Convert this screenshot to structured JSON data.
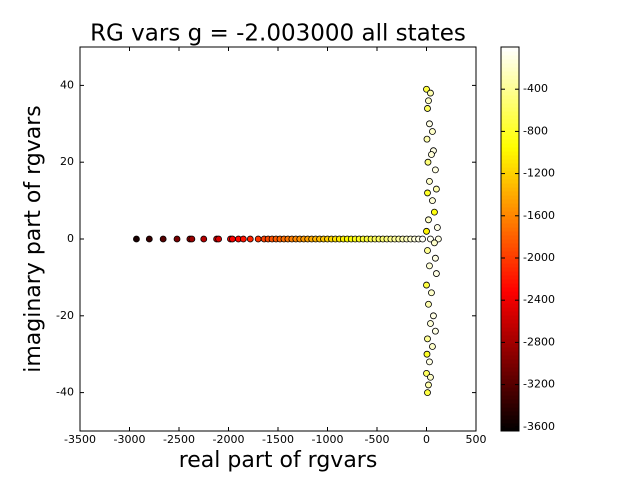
{
  "chart_data": {
    "type": "scatter",
    "title": "RG vars g = -2.003000 all states",
    "xlabel": "real part of rgvars",
    "ylabel": "imaginary part of rgvars",
    "xlim": [
      -3500,
      500
    ],
    "xticks": [
      -3500,
      -3000,
      -2500,
      -2000,
      -1500,
      -1000,
      -500,
      0,
      500
    ],
    "ylim": [
      -50,
      50
    ],
    "yticks": [
      -40,
      -20,
      0,
      20,
      40
    ],
    "colormap": "hot",
    "clim": [
      -3640,
      0
    ],
    "cticks": [
      -3600,
      -3200,
      -2800,
      -2400,
      -2000,
      -1600,
      -1200,
      -800,
      -400
    ],
    "x": [
      -2930,
      -2800,
      -2660,
      -2520,
      -2390,
      -2370,
      -2250,
      -2120,
      -2100,
      -1980,
      -1960,
      -1900,
      -1850,
      -1780,
      -1700,
      -1640,
      -1600,
      -1560,
      -1520,
      -1480,
      -1440,
      -1400,
      -1360,
      -1320,
      -1280,
      -1240,
      -1200,
      -1160,
      -1120,
      -1080,
      -1040,
      -1000,
      -960,
      -920,
      -880,
      -840,
      -800,
      -760,
      -720,
      -680,
      -640,
      -600,
      -560,
      -520,
      -480,
      -440,
      -400,
      -360,
      -320,
      -280,
      -240,
      -200,
      -160,
      -120,
      -80,
      -40,
      0,
      40,
      20,
      10,
      30,
      60,
      5,
      70,
      50,
      15,
      90,
      30,
      100,
      10,
      60,
      80,
      20,
      110,
      0,
      40,
      120,
      80,
      10,
      90,
      30,
      100,
      0,
      50,
      20,
      70,
      40,
      90,
      10,
      60,
      5,
      30,
      0,
      40,
      20,
      10
    ],
    "values": [
      0,
      0,
      0,
      0,
      0,
      0,
      0,
      0,
      0,
      0,
      0,
      0,
      0,
      0,
      0,
      0,
      0,
      0,
      0,
      0,
      0,
      0,
      0,
      0,
      0,
      0,
      0,
      0,
      0,
      0,
      0,
      0,
      0,
      0,
      0,
      0,
      0,
      0,
      0,
      0,
      0,
      0,
      0,
      0,
      0,
      0,
      0,
      0,
      0,
      0,
      0,
      0,
      0,
      0,
      0,
      0,
      39,
      38,
      36,
      34,
      30,
      28,
      26,
      23,
      22,
      20,
      18,
      15,
      13,
      12,
      10,
      7,
      5,
      3,
      2,
      0,
      0,
      -1,
      -3,
      -5,
      -7,
      -9,
      -12,
      -14,
      -17,
      -20,
      -22,
      -24,
      -26,
      -28,
      -30,
      -32,
      -35,
      -36,
      -38,
      -40
    ],
    "c": [
      -3516,
      -3360,
      -3192,
      -3024,
      -2868,
      -2844,
      -2700,
      -2544,
      -2520,
      -2376,
      -2352,
      -2280,
      -2220,
      -2136,
      -2040,
      -1968,
      -1920,
      -1872,
      -1824,
      -1776,
      -1728,
      -1680,
      -1632,
      -1584,
      -1536,
      -1488,
      -1440,
      -1392,
      -1344,
      -1296,
      -1248,
      -1200,
      -1152,
      -1104,
      -1056,
      -1008,
      -960,
      -912,
      -864,
      -816,
      -768,
      -720,
      -672,
      -624,
      -576,
      -528,
      -480,
      -432,
      -384,
      -336,
      -288,
      -240,
      -192,
      -144,
      -96,
      -48,
      -700,
      -300,
      -200,
      -600,
      -100,
      -200,
      -300,
      -100,
      -150,
      -500,
      -100,
      -200,
      -300,
      -800,
      -150,
      -900,
      -200,
      -100,
      -1000,
      -50,
      -100,
      -200,
      -400,
      -100,
      -150,
      -100,
      -700,
      -200,
      -300,
      -100,
      -150,
      -100,
      -400,
      -200,
      -800,
      -100,
      -600,
      -200,
      -300,
      -700
    ]
  }
}
